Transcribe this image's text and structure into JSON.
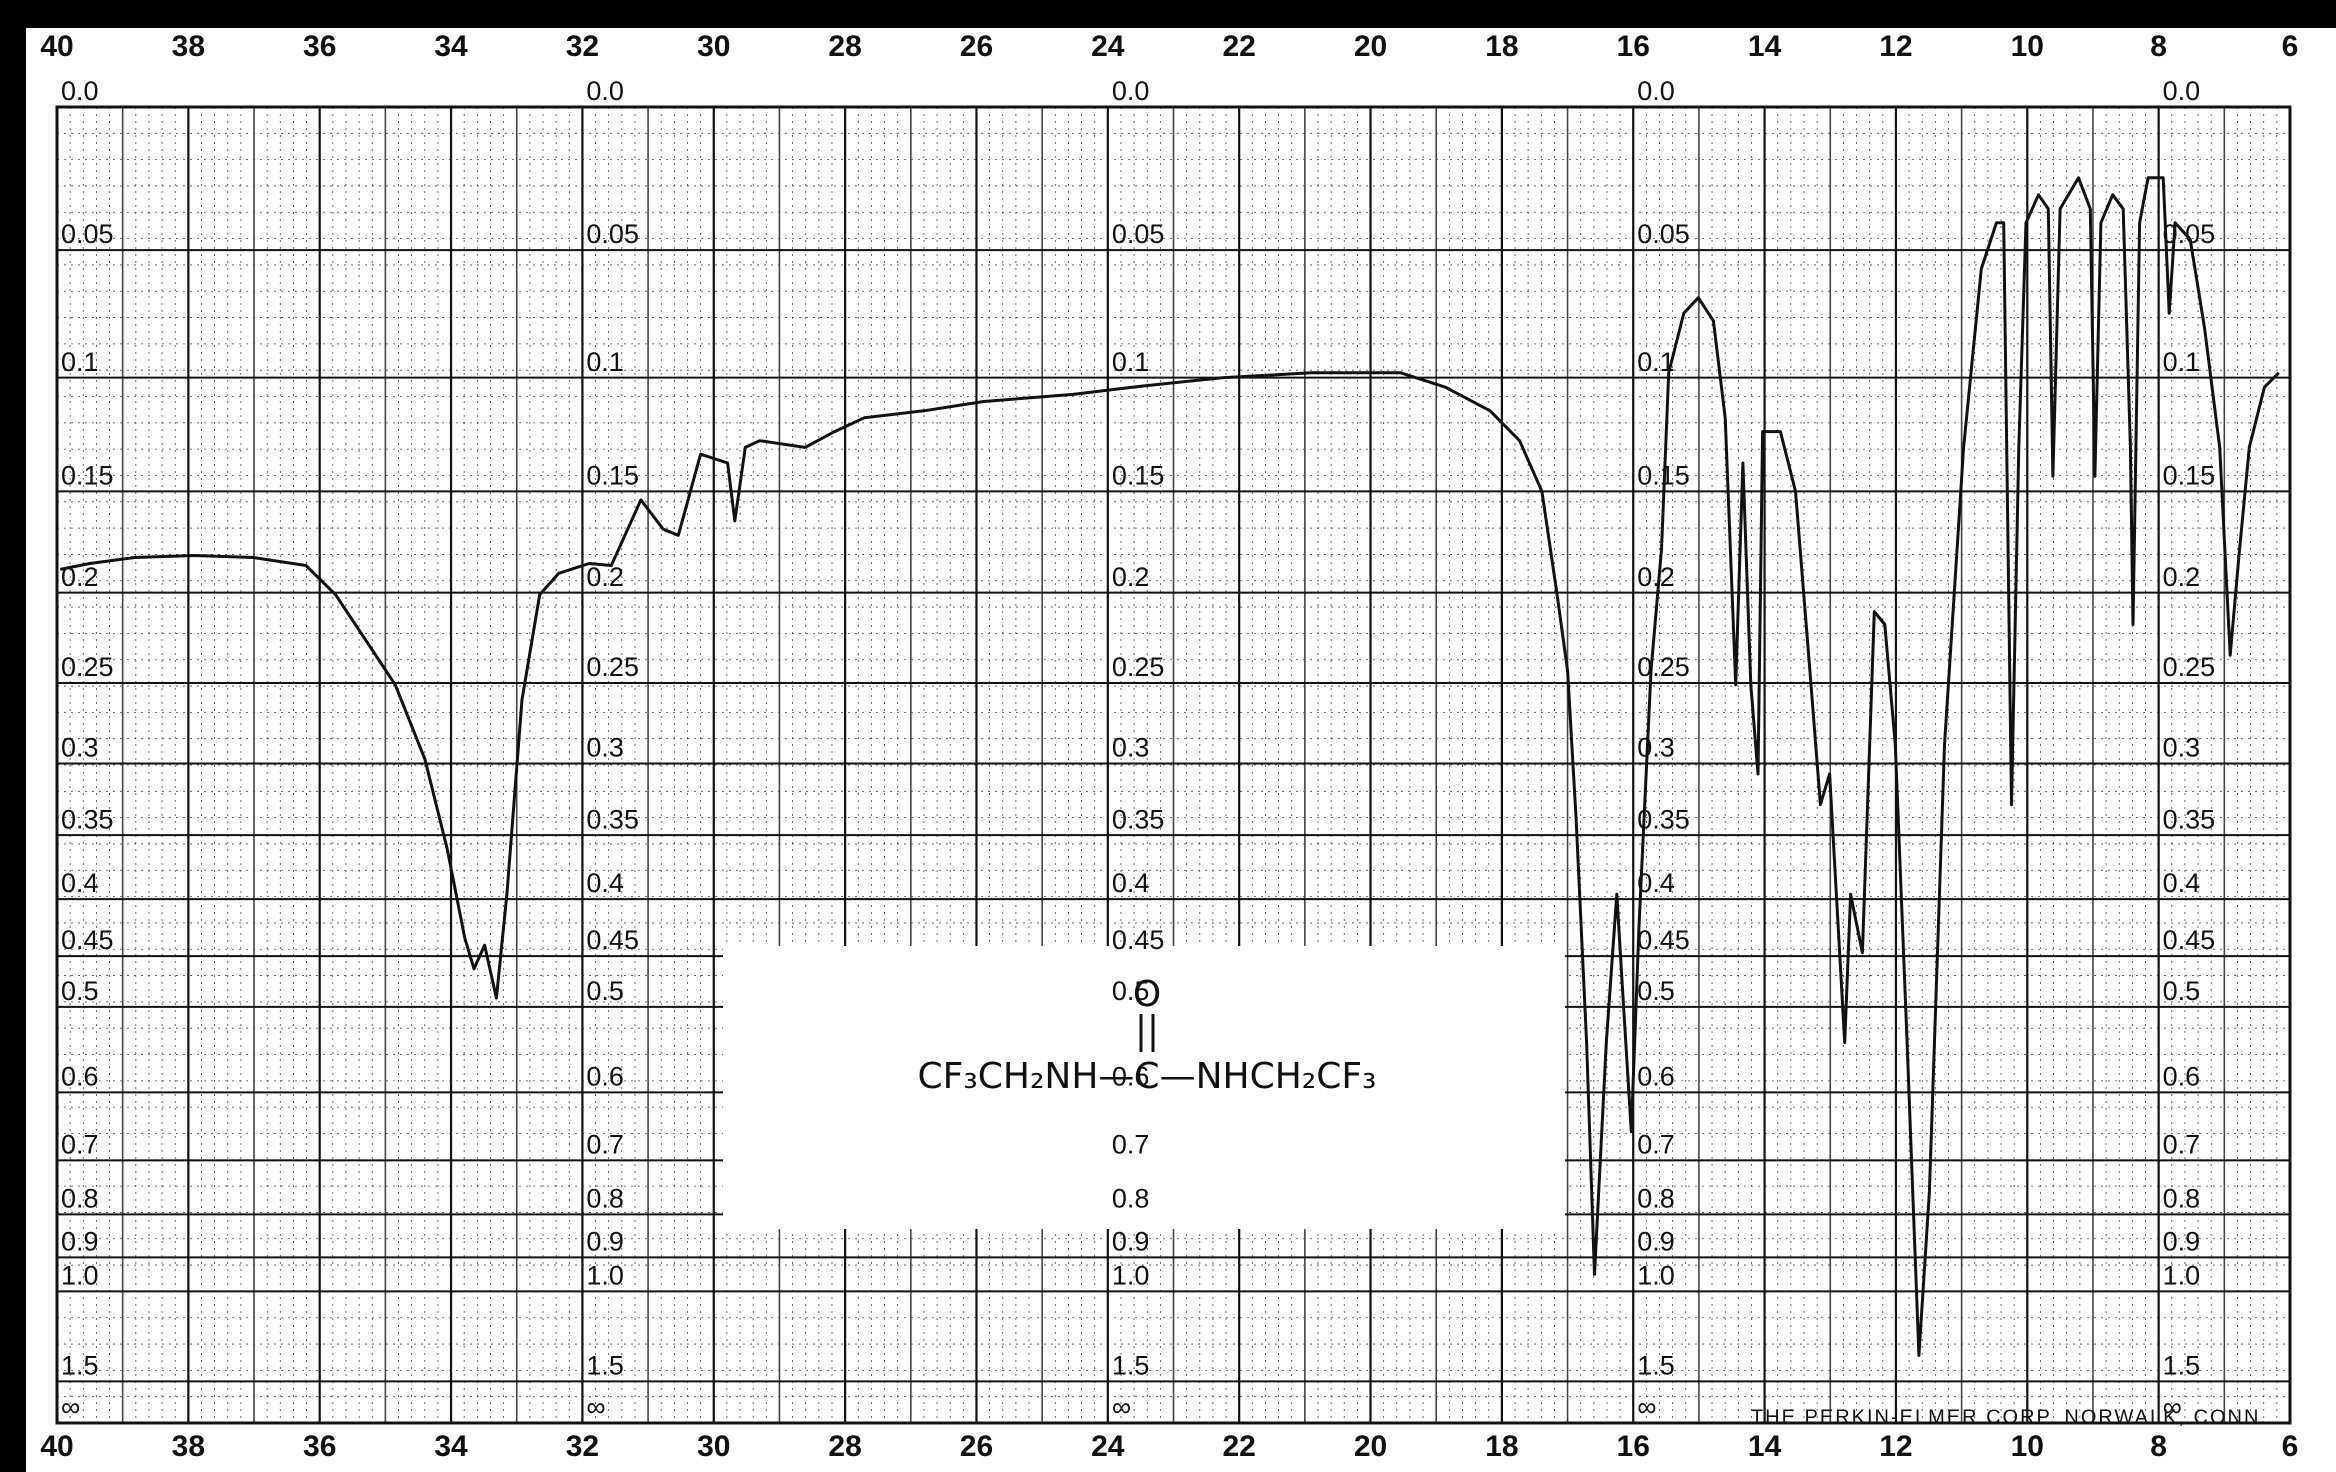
{
  "chart_data": {
    "type": "line",
    "x": [
      39.95,
      39.5,
      38.82,
      37.91,
      37.01,
      36.21,
      35.76,
      35.31,
      34.85,
      34.4,
      34.06,
      33.79,
      33.65,
      33.49,
      33.31,
      33.15,
      32.92,
      32.65,
      32.36,
      31.9,
      31.56,
      31.11,
      30.77,
      30.54,
      30.2,
      29.79,
      29.68,
      29.52,
      29.3,
      28.61,
      28.16,
      27.71,
      26.8,
      25.89,
      24.53,
      23.63,
      22.26,
      20.9,
      19.54,
      18.86,
      18.18,
      17.73,
      17.39,
      17.16,
      17.0,
      16.87,
      16.71,
      16.59,
      16.41,
      16.25,
      16.14,
      16.03,
      15.91,
      15.73,
      15.57,
      15.46,
      15.23,
      15.01,
      14.78,
      14.6,
      14.44,
      14.33,
      14.21,
      14.1,
      14.03,
      13.76,
      13.53,
      13.31,
      13.15,
      13.01,
      12.78,
      12.69,
      12.51,
      12.33,
      12.17,
      12.01,
      11.83,
      11.65,
      11.49,
      11.26,
      10.97,
      10.7,
      10.47,
      10.36,
      10.24,
      10.13,
      10.02,
      9.83,
      9.68,
      9.61,
      9.5,
      9.22,
      9.04,
      8.97,
      8.88,
      8.7,
      8.54,
      8.43,
      8.39,
      8.29,
      8.16,
      7.93,
      7.84,
      7.75,
      7.52,
      7.3,
      7.07,
      6.91,
      6.78,
      6.62,
      6.39,
      6.17
    ],
    "series": [
      {
        "color": "#111111",
        "values": [
          0.188,
          0.185,
          0.182,
          0.181,
          0.182,
          0.186,
          0.201,
          0.225,
          0.251,
          0.297,
          0.36,
          0.434,
          0.462,
          0.44,
          0.491,
          0.396,
          0.26,
          0.201,
          0.19,
          0.185,
          0.186,
          0.154,
          0.168,
          0.171,
          0.133,
          0.137,
          0.164,
          0.13,
          0.127,
          0.13,
          0.123,
          0.117,
          0.114,
          0.11,
          0.107,
          0.104,
          0.1,
          0.098,
          0.098,
          0.104,
          0.114,
          0.127,
          0.15,
          0.201,
          0.243,
          0.338,
          0.539,
          0.947,
          0.539,
          0.396,
          0.507,
          0.655,
          0.421,
          0.243,
          0.178,
          0.098,
          0.074,
          0.068,
          0.077,
          0.117,
          0.251,
          0.137,
          0.251,
          0.307,
          0.123,
          0.123,
          0.15,
          0.243,
          0.328,
          0.307,
          0.539,
          0.396,
          0.447,
          0.21,
          0.217,
          0.288,
          0.539,
          1.29,
          0.755,
          0.288,
          0.13,
          0.057,
          0.04,
          0.04,
          0.328,
          0.13,
          0.04,
          0.03,
          0.035,
          0.143,
          0.035,
          0.024,
          0.035,
          0.143,
          0.04,
          0.03,
          0.035,
          0.13,
          0.217,
          0.04,
          0.024,
          0.024,
          0.074,
          0.04,
          0.046,
          0.08,
          0.13,
          0.234,
          0.182,
          0.13,
          0.104,
          0.098
        ]
      }
    ],
    "xlim": [
      40,
      6
    ],
    "xticks": [
      40,
      38,
      36,
      34,
      32,
      30,
      28,
      26,
      24,
      22,
      20,
      18,
      16,
      14,
      12,
      10,
      8,
      6
    ],
    "ylim": [
      0,
      null
    ],
    "yscale": "transmittance",
    "yticks": [
      {
        "value": 0,
        "label": "0.0"
      },
      0.05,
      0.1,
      0.15,
      0.2,
      0.25,
      0.3,
      0.35,
      0.4,
      0.45,
      0.5,
      0.6,
      0.7,
      0.8,
      0.9,
      {
        "value": 1,
        "label": "1.0"
      },
      1.5,
      {
        "value": null,
        "label": "∞"
      }
    ],
    "grid": true,
    "annotations": {
      "carbonyl": "O",
      "formula": "CF₃CH₂NH—C—NHCH₂CF₃",
      "footer": "THE PERKIN-ELMER CORP. NORWALK, CONN."
    }
  }
}
